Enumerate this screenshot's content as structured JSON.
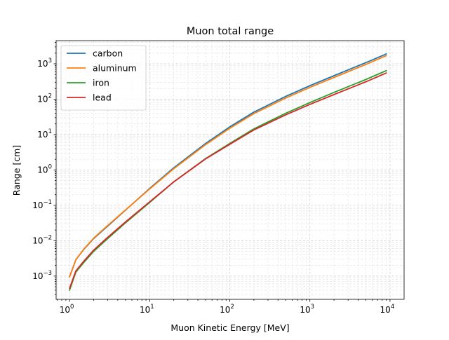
{
  "chart_data": {
    "type": "line",
    "title": "Muon total range",
    "xlabel": "Muon Kinetic Energy [MeV]",
    "ylabel": "Range [cm]",
    "x_scale": "log",
    "y_scale": "log",
    "xlim": [
      0.68,
      15000
    ],
    "ylim": [
      0.00022,
      4500
    ],
    "x_ticks": [
      {
        "value": 1,
        "base": "10",
        "exp": "0"
      },
      {
        "value": 10,
        "base": "10",
        "exp": "1"
      },
      {
        "value": 100,
        "base": "10",
        "exp": "2"
      },
      {
        "value": 1000,
        "base": "10",
        "exp": "3"
      },
      {
        "value": 10000,
        "base": "10",
        "exp": "4"
      }
    ],
    "y_ticks": [
      {
        "value": 0.001,
        "base": "10",
        "exp": "−3"
      },
      {
        "value": 0.01,
        "base": "10",
        "exp": "−2"
      },
      {
        "value": 0.1,
        "base": "10",
        "exp": "−1"
      },
      {
        "value": 1,
        "base": "10",
        "exp": "0"
      },
      {
        "value": 10,
        "base": "10",
        "exp": "1"
      },
      {
        "value": 100,
        "base": "10",
        "exp": "2"
      },
      {
        "value": 1000,
        "base": "10",
        "exp": "3"
      }
    ],
    "grid": true,
    "legend_position": "top-left",
    "x": [
      1,
      1.2,
      1.5,
      2,
      3,
      5,
      10,
      20,
      50,
      100,
      200,
      500,
      1000,
      2000,
      5000,
      9000
    ],
    "series": [
      {
        "name": "carbon",
        "color": "#1f77b4",
        "values": [
          0.00095,
          0.0029,
          0.0056,
          0.0115,
          0.026,
          0.073,
          0.3,
          1.15,
          5.6,
          16.5,
          43,
          120,
          240,
          460,
          1080,
          1900
        ]
      },
      {
        "name": "aluminum",
        "color": "#ff7f0e",
        "values": [
          0.00095,
          0.0029,
          0.0057,
          0.0118,
          0.027,
          0.074,
          0.29,
          1.08,
          5.2,
          15,
          39,
          108,
          215,
          410,
          960,
          1700
        ]
      },
      {
        "name": "iron",
        "color": "#2ca02c",
        "values": [
          0.0004,
          0.0013,
          0.0024,
          0.005,
          0.0115,
          0.032,
          0.12,
          0.46,
          2.1,
          5.6,
          14.5,
          40,
          80,
          155,
          360,
          640
        ]
      },
      {
        "name": "lead",
        "color": "#d62728",
        "values": [
          0.00045,
          0.0014,
          0.0026,
          0.0054,
          0.0125,
          0.034,
          0.125,
          0.46,
          2.05,
          5.3,
          13.5,
          36,
          71,
          135,
          310,
          550
        ]
      }
    ]
  }
}
